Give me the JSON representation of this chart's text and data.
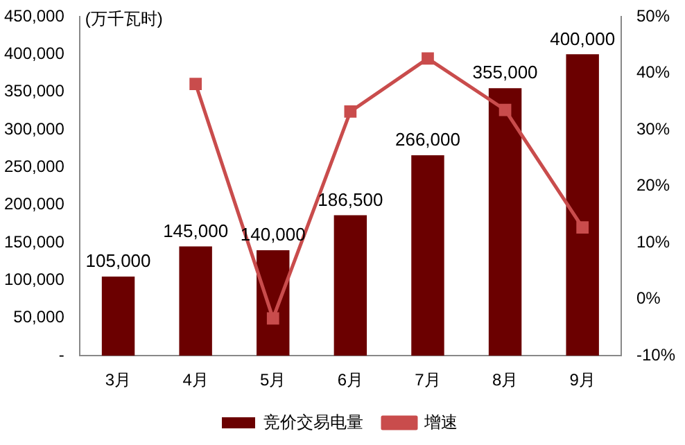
{
  "chart_data": {
    "type": "bar",
    "ylabel": "(万千瓦时)",
    "categories": [
      "3月",
      "4月",
      "5月",
      "6月",
      "7月",
      "8月",
      "9月"
    ],
    "series": [
      {
        "name": "竞价交易电量",
        "color": "#6b0000",
        "values": [
          105000,
          145000,
          140000,
          186500,
          266000,
          355000,
          400000
        ],
        "value_labels": [
          "105,000",
          "145,000",
          "140,000",
          "186,500",
          "266,000",
          "355,000",
          "400,000"
        ]
      },
      {
        "name": "增速",
        "type": "line",
        "axis": "y2",
        "color": "#c94c4c",
        "marker": "square",
        "values": [
          null,
          38.1,
          -3.4,
          33.2,
          42.6,
          33.5,
          12.7
        ]
      }
    ],
    "ylim": [
      0,
      450000
    ],
    "yticks": [
      {
        "value": 0,
        "label": "-"
      },
      {
        "value": 50000,
        "label": "50,000"
      },
      {
        "value": 100000,
        "label": "100,000"
      },
      {
        "value": 150000,
        "label": "150,000"
      },
      {
        "value": 200000,
        "label": "200,000"
      },
      {
        "value": 250000,
        "label": "250,000"
      },
      {
        "value": 300000,
        "label": "300,000"
      },
      {
        "value": 350000,
        "label": "350,000"
      },
      {
        "value": 400000,
        "label": "400,000"
      },
      {
        "value": 450000,
        "label": "450,000"
      }
    ],
    "y2lim": [
      -10,
      50
    ],
    "y2ticks": [
      {
        "value": -10,
        "label": "-10%"
      },
      {
        "value": 0,
        "label": "0%"
      },
      {
        "value": 10,
        "label": "10%"
      },
      {
        "value": 20,
        "label": "20%"
      },
      {
        "value": 30,
        "label": "30%"
      },
      {
        "value": 40,
        "label": "40%"
      },
      {
        "value": 50,
        "label": "50%"
      }
    ],
    "grid": false,
    "legend": "bottom"
  }
}
